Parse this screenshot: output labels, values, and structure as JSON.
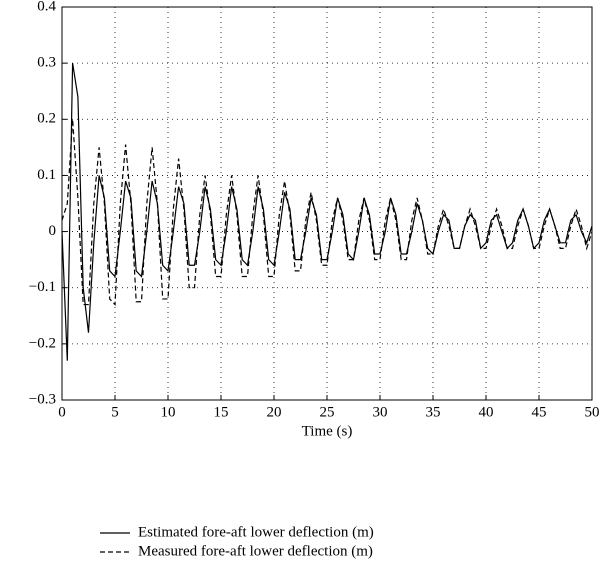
{
  "chart_data": {
    "type": "line",
    "x_label": "Time (s)",
    "x": [
      0,
      0.5,
      1,
      1.5,
      2,
      2.5,
      3,
      3.5,
      4,
      4.5,
      5,
      5.5,
      6,
      6.5,
      7,
      7.5,
      8,
      8.5,
      9,
      9.5,
      10,
      10.5,
      11,
      11.5,
      12,
      12.5,
      13,
      13.5,
      14,
      14.5,
      15,
      15.5,
      16,
      16.5,
      17,
      17.5,
      18,
      18.5,
      19,
      19.5,
      20,
      20.5,
      21,
      21.5,
      22,
      22.5,
      23,
      23.5,
      24,
      24.5,
      25,
      25.5,
      26,
      26.5,
      27,
      27.5,
      28,
      28.5,
      29,
      29.5,
      30,
      30.5,
      31,
      31.5,
      32,
      32.5,
      33,
      33.5,
      34,
      34.5,
      35,
      35.5,
      36,
      36.5,
      37,
      37.5,
      38,
      38.5,
      39,
      39.5,
      40,
      40.5,
      41,
      41.5,
      42,
      42.5,
      43,
      43.5,
      44,
      44.5,
      45,
      45.5,
      46,
      46.5,
      47,
      47.5,
      48,
      48.5,
      49,
      49.5,
      50
    ],
    "series": [
      {
        "name": "Estimated fore-aft lower deflection (m)",
        "color": "#000000",
        "linestyle": "solid",
        "values": [
          0,
          -0.23,
          0.3,
          0.24,
          -0.1,
          -0.18,
          -0.02,
          0.1,
          0.06,
          -0.07,
          -0.08,
          0,
          0.09,
          0.06,
          -0.07,
          -0.08,
          0,
          0.09,
          0.05,
          -0.06,
          -0.07,
          0,
          0.08,
          0.05,
          -0.06,
          -0.06,
          0,
          0.08,
          0.04,
          -0.05,
          -0.06,
          0,
          0.08,
          0.04,
          -0.05,
          -0.06,
          0,
          0.08,
          0.04,
          -0.05,
          -0.06,
          0,
          0.07,
          0.04,
          -0.05,
          -0.05,
          0,
          0.06,
          0.03,
          -0.05,
          -0.05,
          0,
          0.06,
          0.03,
          -0.04,
          -0.05,
          0,
          0.06,
          0.03,
          -0.04,
          -0.04,
          0,
          0.06,
          0.03,
          -0.04,
          -0.04,
          0,
          0.05,
          0.02,
          -0.03,
          -0.04,
          0,
          0.03,
          0.02,
          -0.03,
          -0.03,
          0.01,
          0.03,
          0.02,
          -0.03,
          -0.02,
          0.02,
          0.03,
          0,
          -0.03,
          -0.02,
          0.02,
          0.04,
          0.01,
          -0.03,
          -0.02,
          0.02,
          0.04,
          0.01,
          -0.02,
          -0.02,
          0.02,
          0.03,
          0,
          -0.02,
          0.01
        ]
      },
      {
        "name": "Measured fore-aft lower deflection (m)",
        "color": "#000000",
        "linestyle": "dashed",
        "values": [
          0.02,
          0.05,
          0.2,
          0.06,
          -0.13,
          -0.13,
          0.05,
          0.15,
          0.05,
          -0.12,
          -0.13,
          0.05,
          0.155,
          0.05,
          -0.125,
          -0.125,
          0.05,
          0.15,
          0.05,
          -0.12,
          -0.12,
          0.04,
          0.13,
          0.04,
          -0.1,
          -0.1,
          0.03,
          0.1,
          0.03,
          -0.08,
          -0.08,
          0.03,
          0.1,
          0.03,
          -0.08,
          -0.08,
          0.03,
          0.1,
          0.03,
          -0.08,
          -0.08,
          0.03,
          0.09,
          0.03,
          -0.07,
          -0.07,
          0.02,
          0.07,
          0.02,
          -0.06,
          -0.06,
          0.02,
          0.06,
          0.02,
          -0.05,
          -0.05,
          0.02,
          0.06,
          0.02,
          -0.05,
          -0.05,
          0.02,
          0.06,
          0.02,
          -0.05,
          -0.05,
          0.02,
          0.06,
          0.02,
          -0.04,
          -0.04,
          0.01,
          0.04,
          0.01,
          -0.03,
          -0.03,
          0.01,
          0.04,
          0.01,
          -0.03,
          -0.03,
          0.01,
          0.04,
          0.01,
          -0.03,
          -0.03,
          0.01,
          0.04,
          0.01,
          -0.03,
          -0.03,
          0.01,
          0.04,
          0.01,
          -0.03,
          -0.03,
          0.01,
          0.04,
          0.01,
          -0.03,
          0
        ]
      }
    ],
    "xlim": [
      0,
      50
    ],
    "xticks": [
      0,
      5,
      10,
      15,
      20,
      25,
      30,
      35,
      40,
      45,
      50
    ],
    "ylim": [
      -0.3,
      0.4
    ],
    "yticks": [
      {
        "value": -0.3,
        "label": "−0.3"
      },
      {
        "value": -0.2,
        "label": "−0.2"
      },
      {
        "value": -0.1,
        "label": "−0.1"
      },
      0,
      0.1,
      0.2,
      0.3,
      0.4
    ],
    "grid": true,
    "legend": "bottom"
  }
}
